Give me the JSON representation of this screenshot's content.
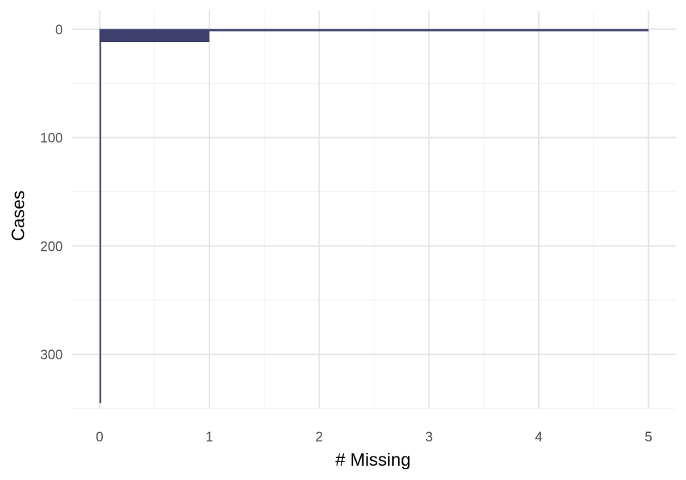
{
  "chart_data": {
    "type": "bar",
    "orientation": "horizontal-cumulative",
    "xlabel": "# Missing",
    "ylabel": "Cases",
    "xlim": [
      -0.25,
      5.25
    ],
    "ylim": [
      350,
      -17
    ],
    "y_reversed": true,
    "x_ticks": [
      "0",
      "1",
      "2",
      "3",
      "4",
      "5"
    ],
    "y_ticks": [
      "0",
      "100",
      "200",
      "300"
    ],
    "grid": true,
    "legend": "none",
    "bar_color": "#3f3f6e",
    "series": [
      {
        "segments": [
          {
            "missing": 0,
            "cases_from": 0,
            "cases_to": 345
          },
          {
            "missing": 1,
            "cases_from": 0,
            "cases_to": 12
          },
          {
            "missing": 5,
            "cases_from": 0,
            "cases_to": 2
          }
        ]
      }
    ]
  }
}
